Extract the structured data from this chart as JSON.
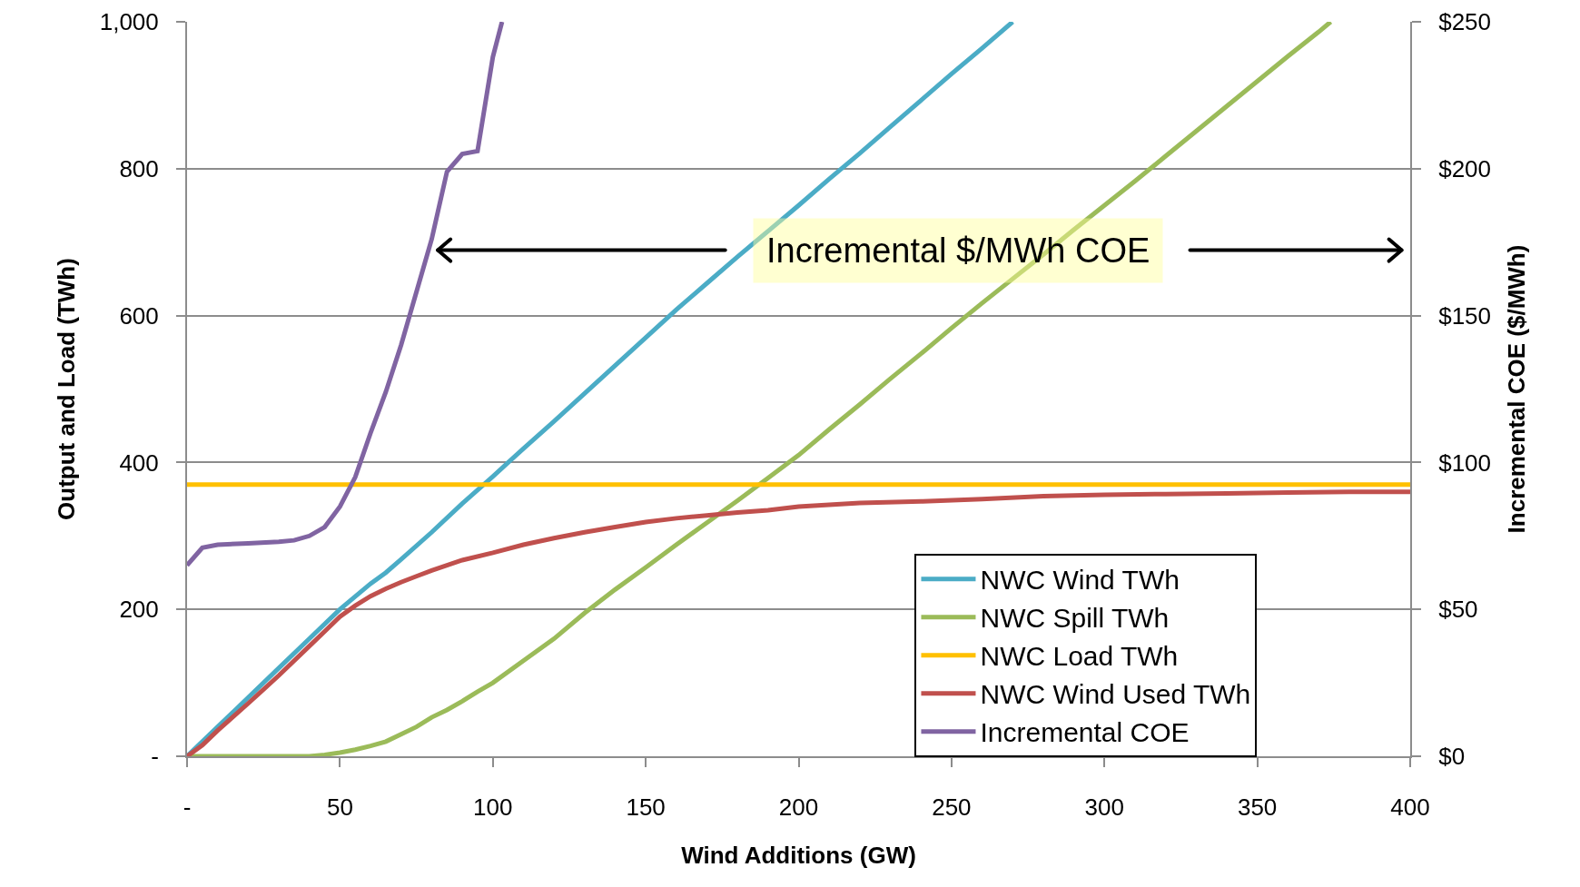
{
  "chart_data": {
    "type": "line",
    "xlabel": "Wind Additions (GW)",
    "ylabel": "Output and Load (TWh)",
    "y2label": "Incremental COE ($/MWh)",
    "xlim": [
      0,
      400
    ],
    "xticks": [
      {
        "value": 0,
        "label": "-"
      },
      50,
      100,
      150,
      200,
      250,
      300,
      350,
      400
    ],
    "ylim": [
      0,
      1000
    ],
    "yticks": [
      {
        "value": 0,
        "label": "-"
      },
      200,
      400,
      600,
      800,
      {
        "value": 1000,
        "label": "1,000"
      }
    ],
    "y2lim": [
      0,
      250
    ],
    "y2ticks": [
      {
        "value": 0,
        "label": "$0"
      },
      {
        "value": 50,
        "label": "$50"
      },
      {
        "value": 100,
        "label": "$100"
      },
      {
        "value": 150,
        "label": "$150"
      },
      {
        "value": 200,
        "label": "$200"
      },
      {
        "value": 250,
        "label": "$250"
      }
    ],
    "grid": "y",
    "legend": "bottom right",
    "line_style": "solid",
    "marker": "none",
    "annotations": [
      "Incremental $/MWh COE"
    ],
    "series": [
      {
        "name": "NWC Wind TWh",
        "color": "#4bacc6",
        "x": [
          0,
          10,
          20,
          30,
          40,
          50,
          60,
          65,
          70,
          80,
          90,
          100,
          110,
          120,
          130,
          140,
          150,
          160,
          170,
          180,
          190,
          200,
          210,
          220,
          230,
          240,
          250,
          260,
          270
        ],
        "values": [
          0,
          40,
          80,
          120,
          160,
          200,
          235,
          250,
          268,
          305,
          344,
          381,
          419,
          456,
          494,
          532,
          570,
          608,
          644,
          680,
          715,
          750,
          786,
          821,
          857,
          893,
          929,
          964,
          1000
        ]
      },
      {
        "name": "NWC Spill TWh",
        "color": "#9bbb59",
        "x": [
          0,
          40,
          45,
          50,
          55,
          60,
          65,
          70,
          75,
          80,
          85,
          90,
          95,
          100,
          110,
          120,
          130,
          140,
          150,
          160,
          170,
          180,
          190,
          200,
          210,
          220,
          230,
          240,
          250,
          260,
          270,
          280,
          290,
          300,
          310,
          320,
          330,
          340,
          350,
          360,
          370,
          374
        ],
        "values": [
          0,
          0,
          2,
          5,
          9,
          14,
          20,
          30,
          40,
          53,
          63,
          75,
          88,
          100,
          130,
          160,
          195,
          227,
          257,
          288,
          318,
          348,
          379,
          410,
          445,
          479,
          514,
          548,
          583,
          617,
          650,
          683,
          717,
          750,
          783,
          817,
          851,
          885,
          919,
          953,
          986,
          1000
        ]
      },
      {
        "name": "NWC Load TWh",
        "color": "#ffc000",
        "x": [
          0,
          100,
          200,
          300,
          400
        ],
        "values": [
          370,
          370,
          370,
          370,
          370
        ]
      },
      {
        "name": "NWC Wind Used TWh",
        "color": "#c0504d",
        "x": [
          0,
          5,
          10,
          20,
          30,
          40,
          45,
          50,
          55,
          60,
          65,
          70,
          75,
          80,
          90,
          100,
          110,
          120,
          130,
          140,
          150,
          160,
          170,
          180,
          190,
          200,
          220,
          240,
          260,
          280,
          300,
          320,
          340,
          360,
          380,
          400
        ],
        "values": [
          0,
          15,
          35,
          72,
          110,
          150,
          170,
          190,
          205,
          218,
          228,
          237,
          245,
          253,
          267,
          277,
          288,
          297,
          305,
          312,
          319,
          324,
          328,
          332,
          335,
          340,
          345,
          347,
          350,
          354,
          356,
          357,
          358,
          359,
          360,
          360
        ]
      },
      {
        "name": "Incremental COE",
        "color": "#8064a2",
        "axis": "y2",
        "x": [
          0,
          5,
          10,
          20,
          30,
          35,
          40,
          45,
          50,
          55,
          60,
          65,
          70,
          75,
          80,
          85,
          90,
          95,
          100,
          103
        ],
        "values": [
          65,
          71,
          72,
          72.5,
          73,
          73.5,
          75,
          78,
          85,
          95,
          110,
          124,
          140,
          158,
          176,
          199,
          205,
          206,
          238,
          250
        ]
      }
    ]
  }
}
